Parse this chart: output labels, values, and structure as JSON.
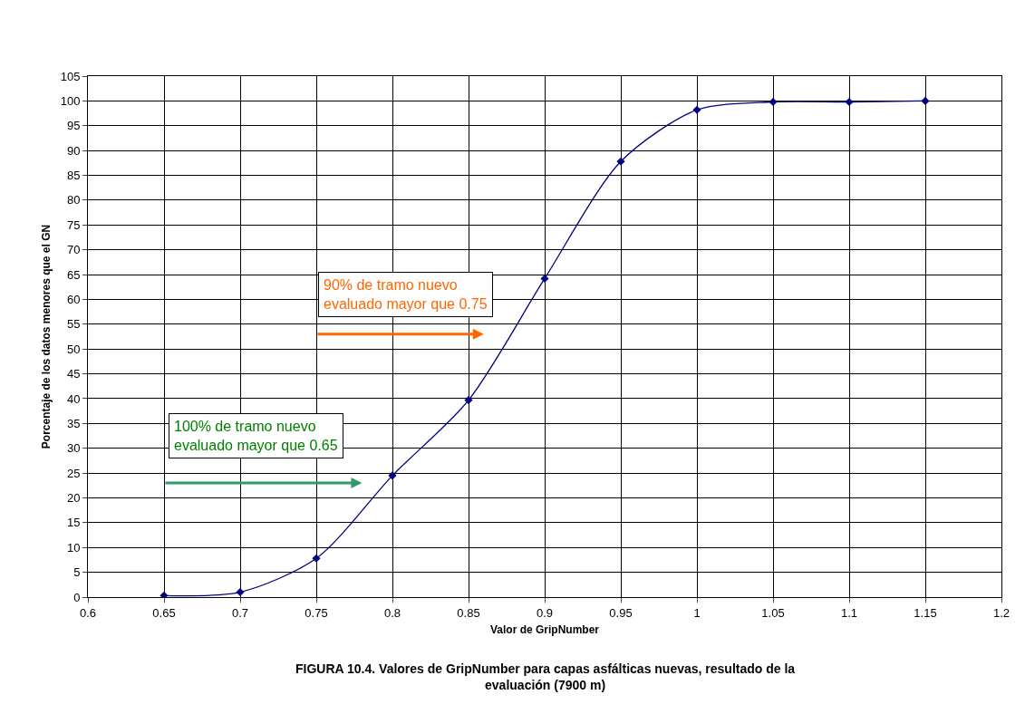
{
  "chart_data": {
    "type": "line",
    "title": "FIGURA 10.4. Valores de GripNumber para capas asfálticas nuevas, resultado de la\nevaluación (7900 m)",
    "xlabel": "Valor de GripNumber",
    "ylabel": "Porcentaje de los datos menores que el GN",
    "x": [
      0.65,
      0.7,
      0.75,
      0.8,
      0.85,
      0.9,
      0.95,
      1,
      1.05,
      1.1,
      1.15
    ],
    "series": [
      {
        "color": "#000080",
        "values": [
          0.3,
          1,
          7.8,
          24.5,
          39.7,
          64.2,
          87.8,
          98.2,
          99.8,
          99.8,
          100
        ]
      }
    ],
    "xlim": [
      0.6,
      1.2
    ],
    "xticks": [
      0.6,
      0.65,
      0.7,
      0.75,
      0.8,
      0.85,
      0.9,
      0.95,
      1,
      1.05,
      1.1,
      1.15,
      1.2
    ],
    "ylim": [
      0,
      105
    ],
    "yticks": [
      0,
      5,
      10,
      15,
      20,
      25,
      30,
      35,
      40,
      45,
      50,
      55,
      60,
      65,
      70,
      75,
      80,
      85,
      90,
      95,
      100,
      105
    ],
    "annotations": [
      "90% de tramo nuevo\nevaluado mayor que 0.75",
      "100% de tramo nuevo\nevaluado mayor que 0.65"
    ],
    "grid": true,
    "marker": "diamond",
    "line_style": "solid"
  }
}
